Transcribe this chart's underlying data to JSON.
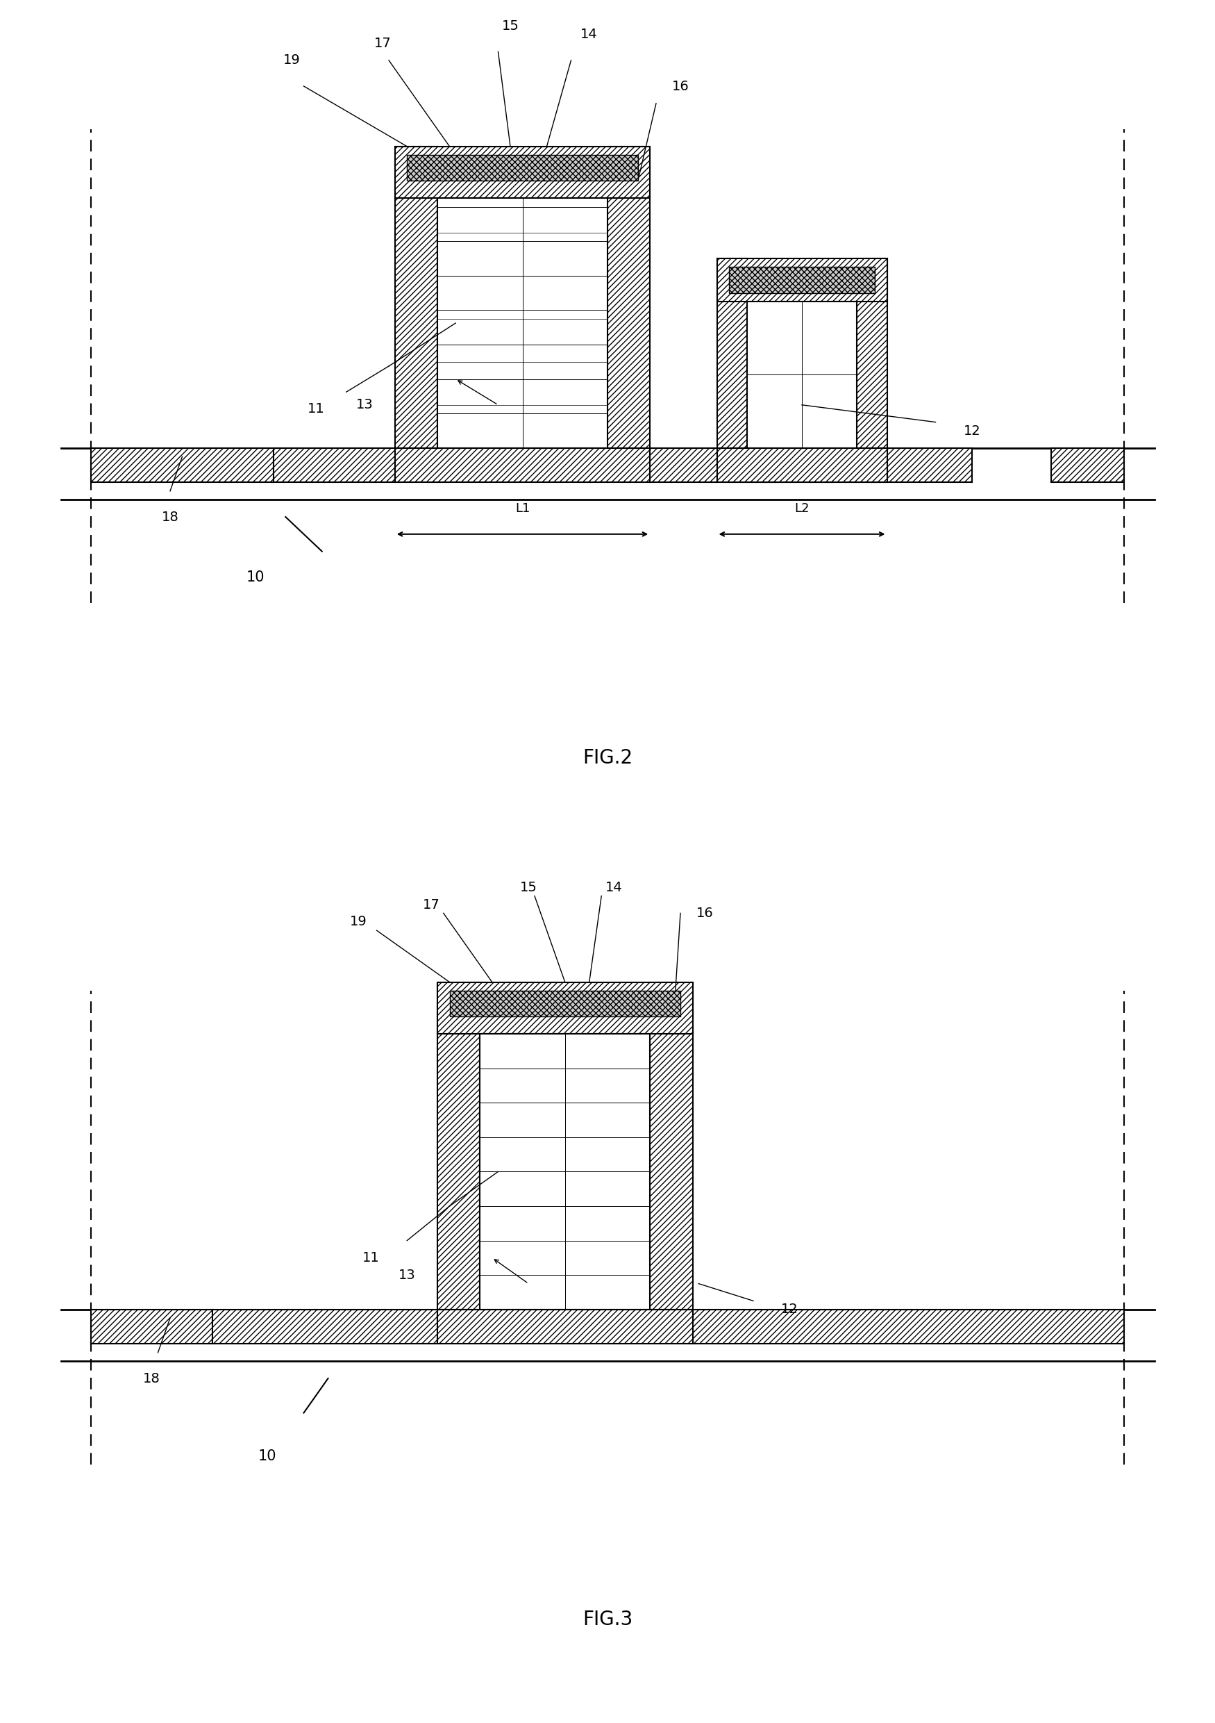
{
  "fig_width": 17.5,
  "fig_height": 24.8,
  "bg_color": "#ffffff",
  "fig2_label": "FIG.2",
  "fig3_label": "FIG.3"
}
